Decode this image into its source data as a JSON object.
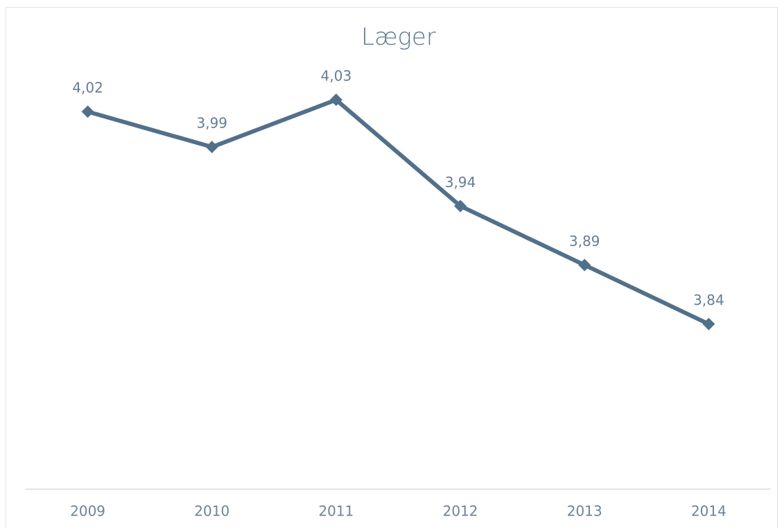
{
  "chart_data": {
    "type": "line",
    "title": "Læger",
    "categories": [
      "2009",
      "2010",
      "2011",
      "2012",
      "2013",
      "2014"
    ],
    "series": [
      {
        "name": "Læger",
        "color": "#52708a",
        "values": [
          4.02,
          3.99,
          4.03,
          3.94,
          3.89,
          3.84
        ],
        "value_labels": [
          "4,02",
          "3,99",
          "4,03",
          "3,94",
          "3,89",
          "3,84"
        ]
      }
    ],
    "ylim": [
      3.7,
      4.05
    ],
    "grid": false,
    "legend": false
  }
}
